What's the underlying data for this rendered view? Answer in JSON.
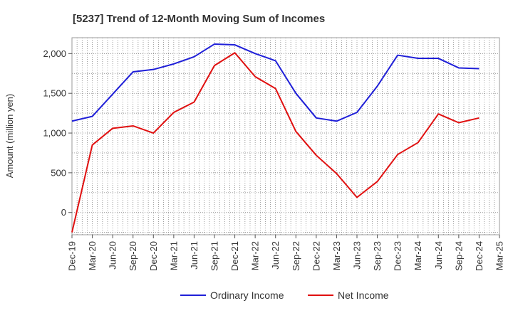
{
  "chart_data": {
    "type": "line",
    "title": "[5237]  Trend of 12-Month Moving Sum of Incomes",
    "xlabel": "",
    "ylabel": "Amount (million yen)",
    "ylim": [
      -280,
      2200
    ],
    "yticks": [
      0,
      500,
      1000,
      1500,
      2000
    ],
    "ytick_labels": [
      "0",
      "500",
      "1,000",
      "1,500",
      "2,000"
    ],
    "grid": true,
    "legend_position": "bottom",
    "categories": [
      "Dec-19",
      "Mar-20",
      "Jun-20",
      "Sep-20",
      "Dec-20",
      "Mar-21",
      "Jun-21",
      "Sep-21",
      "Dec-21",
      "Mar-22",
      "Jun-22",
      "Sep-22",
      "Dec-22",
      "Mar-23",
      "Jun-23",
      "Sep-23",
      "Dec-23",
      "Mar-24",
      "Jun-24",
      "Sep-24",
      "Dec-24",
      "Mar-25"
    ],
    "series": [
      {
        "name": "Ordinary Income",
        "color": "#1f1fd8",
        "values": [
          1150,
          1210,
          1490,
          1770,
          1800,
          1870,
          1960,
          2120,
          2110,
          2000,
          1910,
          1500,
          1190,
          1150,
          1260,
          1590,
          1980,
          1940,
          1940,
          1820,
          1810,
          null
        ]
      },
      {
        "name": "Net Income",
        "color": "#e01010",
        "values": [
          -250,
          850,
          1060,
          1090,
          1000,
          1260,
          1390,
          1850,
          2010,
          1710,
          1560,
          1020,
          720,
          490,
          190,
          390,
          730,
          880,
          1240,
          1130,
          1190,
          null
        ]
      }
    ]
  }
}
